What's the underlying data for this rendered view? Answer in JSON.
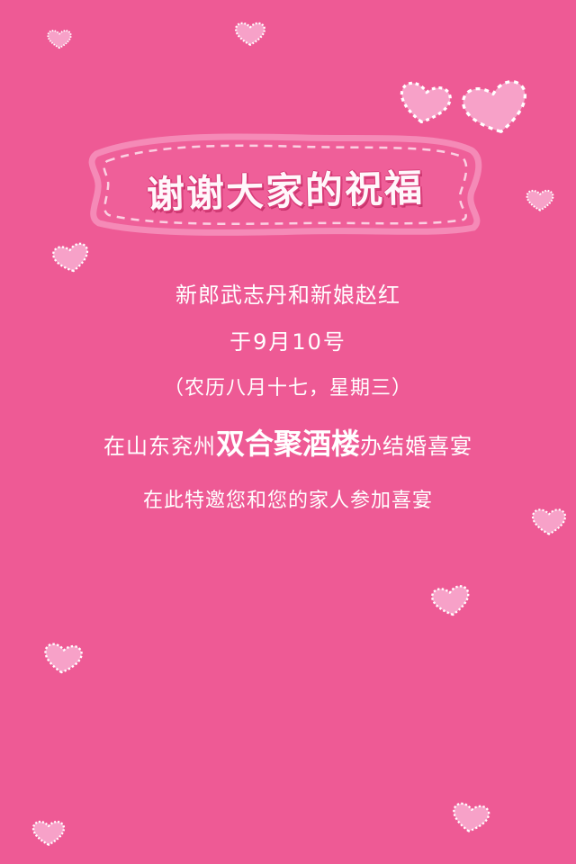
{
  "banner": {
    "title": "谢谢大家的祝福"
  },
  "invitation": {
    "line1": "新郎武志丹和新娘赵红",
    "line2": "于9月10号",
    "line3": "（农历八月十七，星期三）",
    "line4_prefix": "在山东兖州",
    "line4_venue": "双合聚酒楼",
    "line4_suffix": "办结婚喜宴",
    "line5": "在此特邀您和您的家人参加喜宴"
  },
  "colors": {
    "background": "#ee5a95",
    "heart_fill": "#f7a1c8",
    "heart_outline": "#ffffff",
    "banner_fill": "#ef5f99",
    "banner_border": "#f58ab7"
  },
  "decorations": {
    "icon": "heart-icon",
    "heart_count": 12
  }
}
